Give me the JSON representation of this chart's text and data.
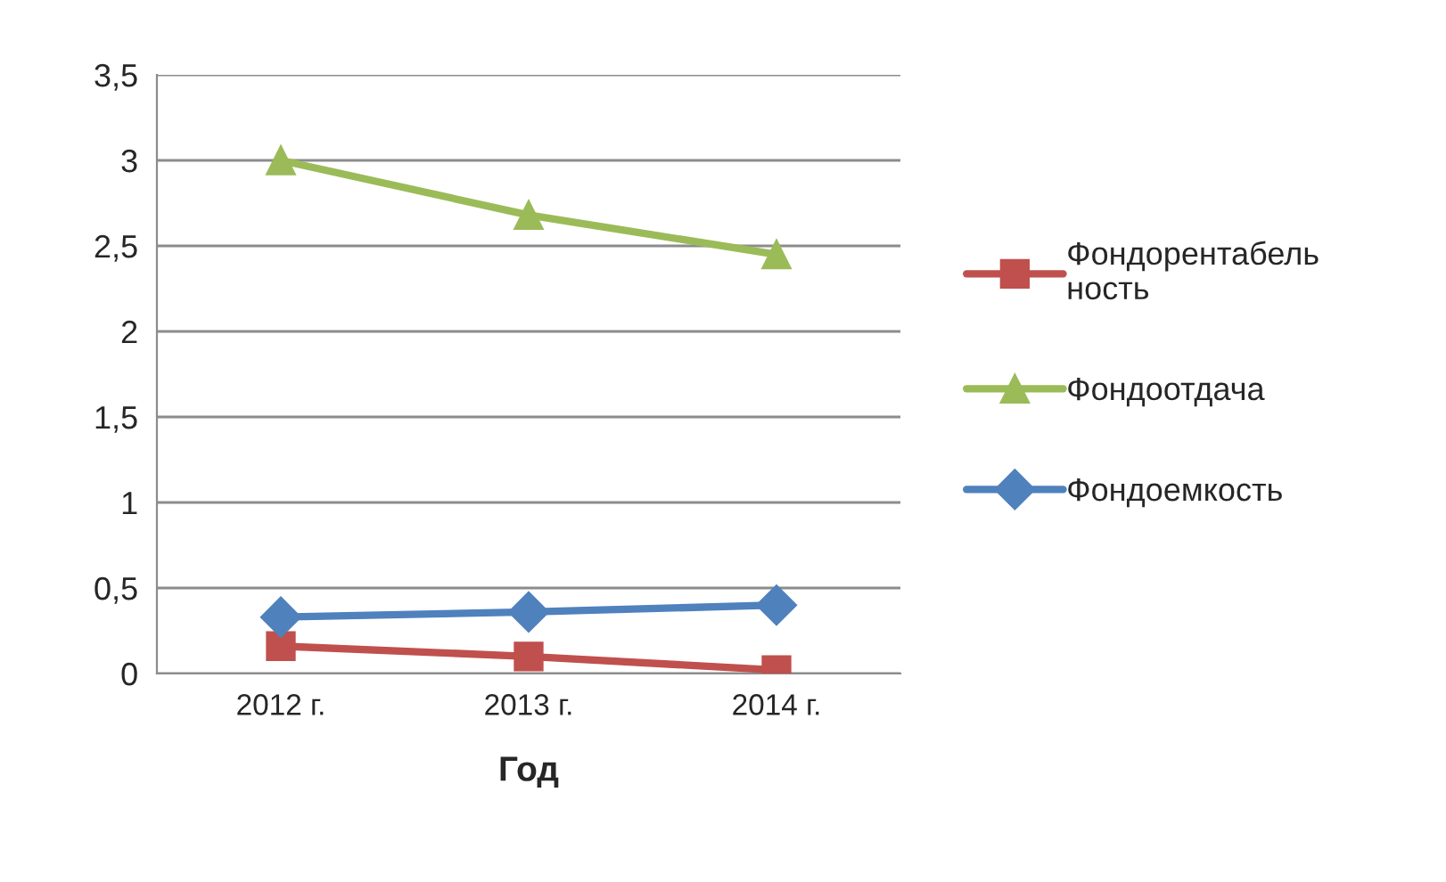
{
  "chart_data": {
    "type": "line",
    "xlabel": "Год",
    "categories": [
      "2012 г.",
      "2013 г.",
      "2014 г."
    ],
    "series": [
      {
        "name": "Фондорентабель\nность",
        "color": "#c0504d",
        "marker": "square",
        "values": [
          0.16,
          0.1,
          0.02
        ]
      },
      {
        "name": "Фондоотдача",
        "color": "#9bbb59",
        "marker": "triangle",
        "values": [
          3.0,
          2.68,
          2.45
        ]
      },
      {
        "name": "Фондоемкость",
        "color": "#4f81bd",
        "marker": "diamond",
        "values": [
          0.33,
          0.36,
          0.4
        ]
      }
    ],
    "ylim": [
      0,
      3.5
    ],
    "yticks": [
      {
        "value": 0,
        "label": "0"
      },
      {
        "value": 0.5,
        "label": "0,5"
      },
      {
        "value": 1,
        "label": "1"
      },
      {
        "value": 1.5,
        "label": "1,5"
      },
      {
        "value": 2,
        "label": "2"
      },
      {
        "value": 2.5,
        "label": "2,5"
      },
      {
        "value": 3,
        "label": "3"
      },
      {
        "value": 3.5,
        "label": "3,5"
      }
    ],
    "grid": "y",
    "legend": "right",
    "line_style": "solid"
  }
}
